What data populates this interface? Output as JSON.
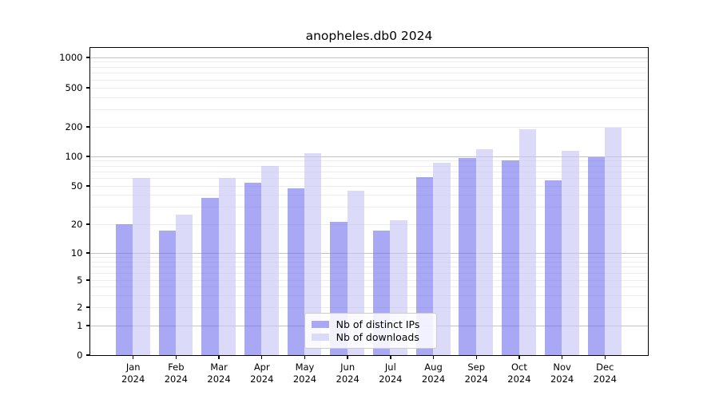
{
  "chart_data": {
    "type": "bar",
    "title": "anopheles.db0 2024",
    "months": [
      "Jan",
      "Feb",
      "Mar",
      "Apr",
      "May",
      "Jun",
      "Jul",
      "Aug",
      "Sep",
      "Oct",
      "Nov",
      "Dec"
    ],
    "year_label": "2024",
    "series": [
      {
        "name": "Nb of distinct IPs",
        "color": "#6666ee",
        "alpha": 0.57,
        "values": [
          20,
          17,
          37,
          54,
          47,
          21,
          17,
          61,
          96,
          91,
          57,
          98
        ]
      },
      {
        "name": "Nb of downloads",
        "color": "#c6c6f5",
        "alpha": 0.63,
        "values": [
          60,
          25,
          60,
          80,
          108,
          44,
          22,
          86,
          117,
          189,
          114,
          196
        ]
      }
    ],
    "y_ticks": [
      0,
      1,
      2,
      5,
      10,
      20,
      50,
      100,
      200,
      500,
      1000
    ],
    "y_scale": "log above 1, zero shown at axis base",
    "ylim": [
      0,
      1250
    ],
    "grid": "horizontal log gridlines, darker at powers of 10",
    "legend_position": "lower center inside plot"
  }
}
